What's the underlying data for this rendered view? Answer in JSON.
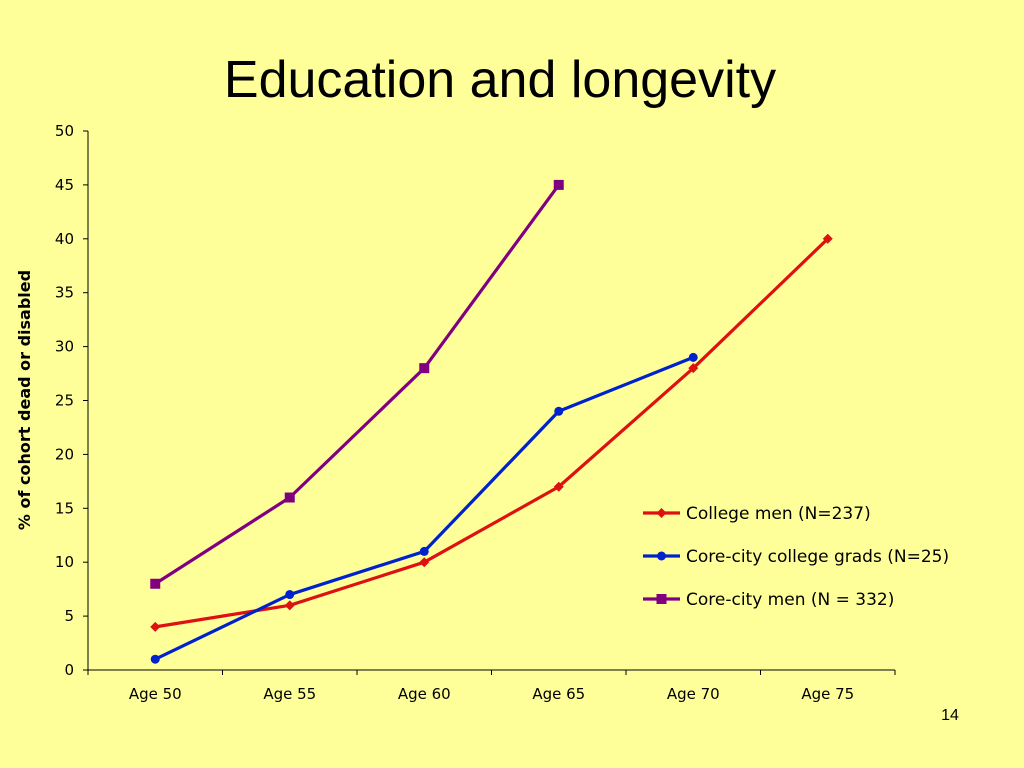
{
  "slide": {
    "title": "Education and longevity",
    "page_number": "14"
  },
  "chart_data": {
    "type": "line",
    "title": "",
    "xlabel": "",
    "ylabel": "% of cohort dead or disabled",
    "categories": [
      "Age 50",
      "Age 55",
      "Age 60",
      "Age 65",
      "Age 70",
      "Age 75"
    ],
    "ylim": [
      0,
      50
    ],
    "yticks": [
      0,
      5,
      10,
      15,
      20,
      25,
      30,
      35,
      40,
      45,
      50
    ],
    "grid": false,
    "legend_position": "right",
    "series": [
      {
        "name": "College men (N=237)",
        "color": "#DD1111",
        "marker": "diamond",
        "values": [
          4,
          6,
          10,
          17,
          28,
          40
        ]
      },
      {
        "name": "Core-city college grads (N=25)",
        "color": "#0022CC",
        "marker": "circle",
        "values": [
          1,
          7,
          11,
          24,
          29,
          null
        ]
      },
      {
        "name": "Core-city men (N = 332)",
        "color": "#800080",
        "marker": "square",
        "values": [
          8,
          16,
          28,
          45,
          null,
          null
        ]
      }
    ]
  }
}
